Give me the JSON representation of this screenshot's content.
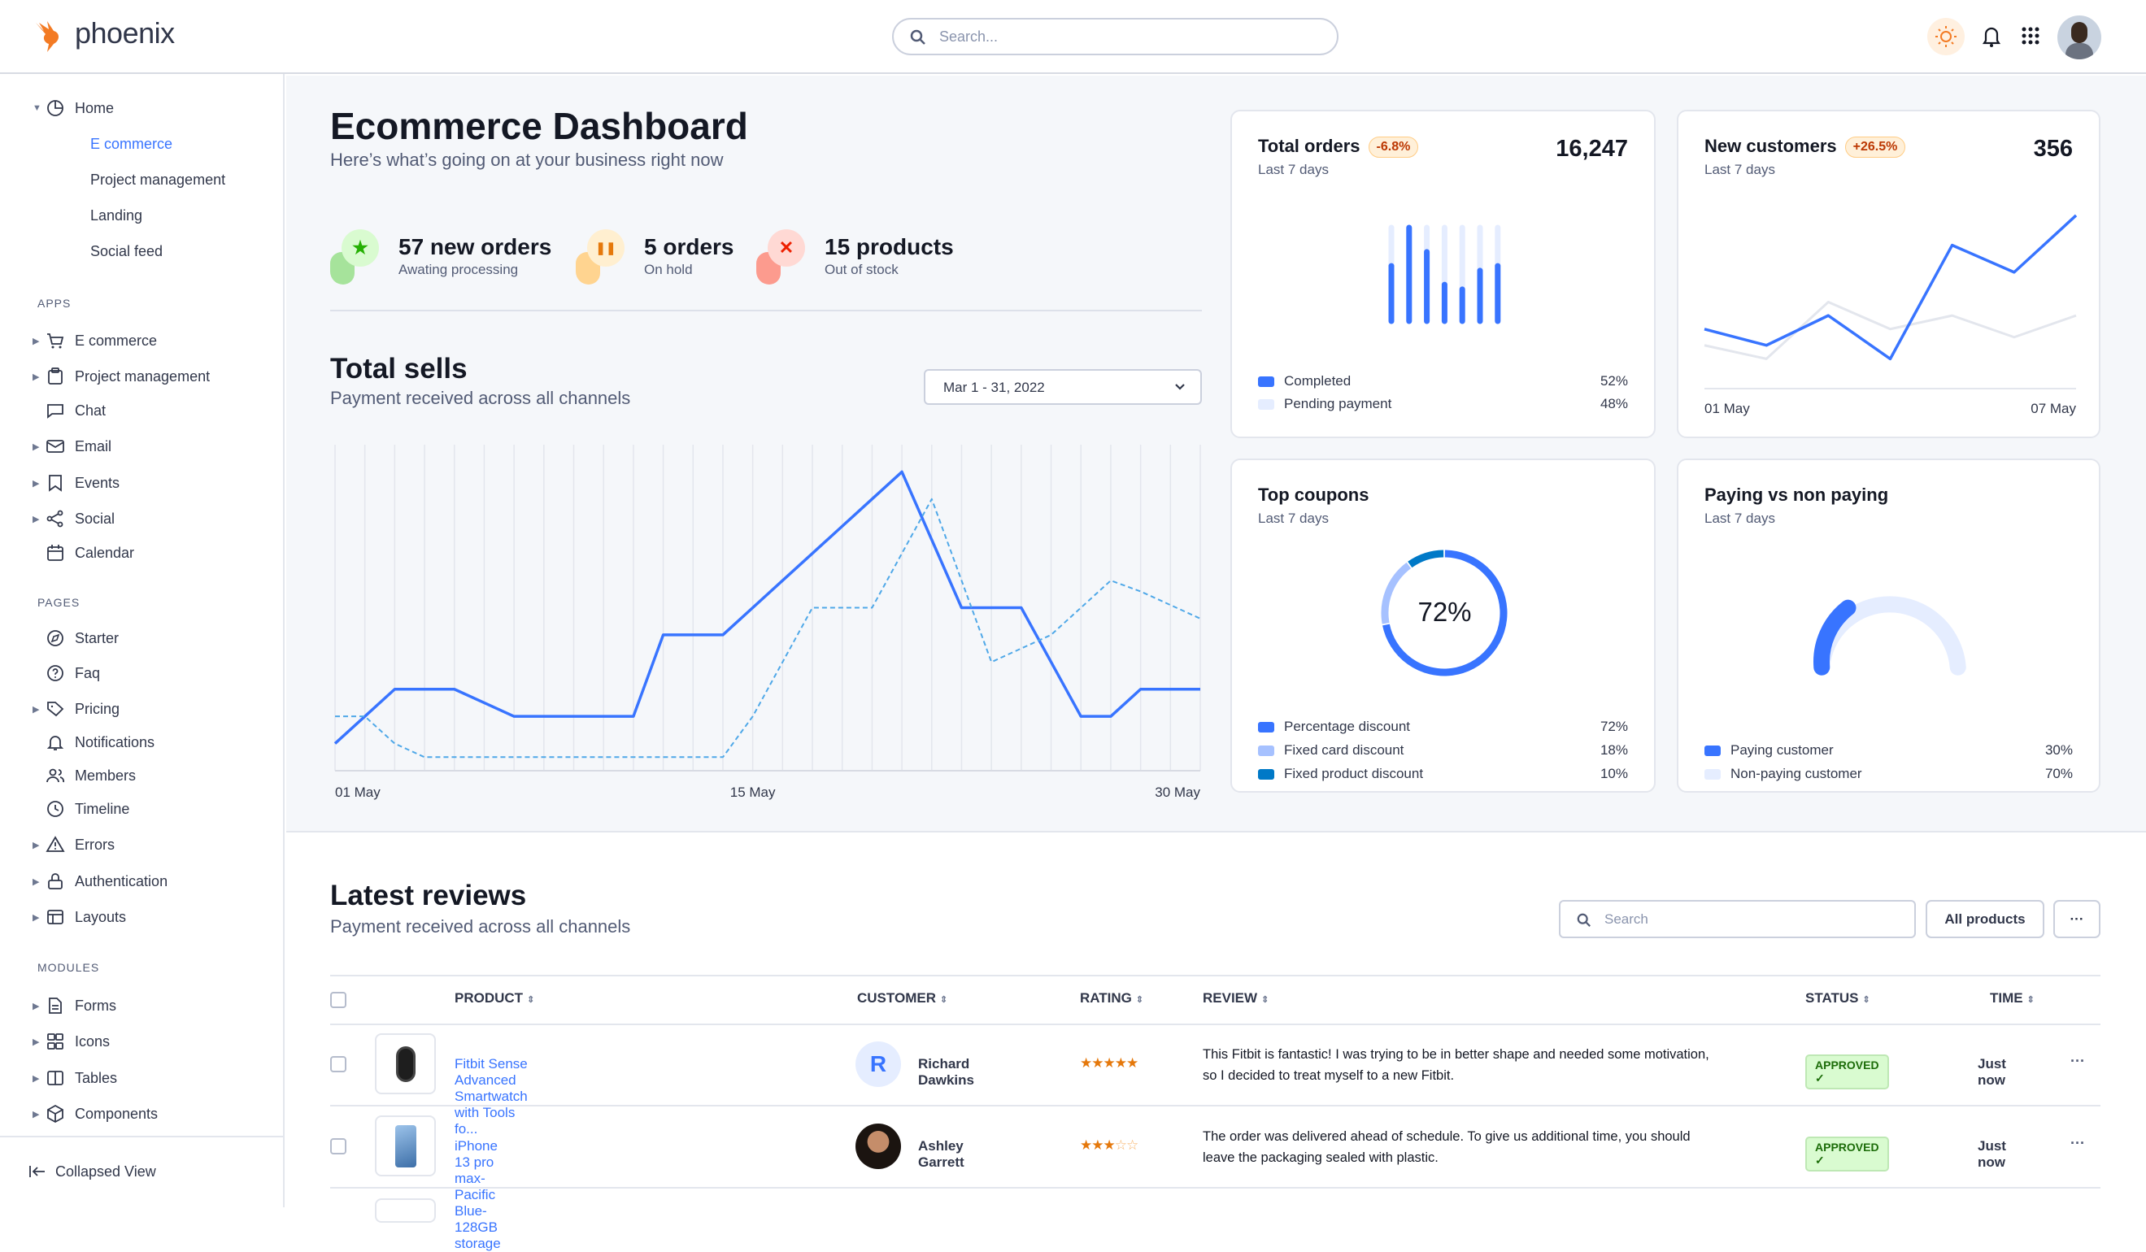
{
  "header": {
    "brand": "phoenix",
    "search_placeholder": "Search..."
  },
  "sidebar": {
    "home": {
      "label": "Home",
      "children": [
        "E commerce",
        "Project management",
        "Landing",
        "Social feed"
      ]
    },
    "sections": [
      {
        "title": "APPS",
        "items": [
          {
            "label": "E commerce",
            "icon": "cart-icon",
            "caret": true
          },
          {
            "label": "Project management",
            "icon": "clipboard-icon",
            "caret": true
          },
          {
            "label": "Chat",
            "icon": "chat-icon",
            "caret": false
          },
          {
            "label": "Email",
            "icon": "mail-icon",
            "caret": true
          },
          {
            "label": "Events",
            "icon": "bookmark-icon",
            "caret": true
          },
          {
            "label": "Social",
            "icon": "share-icon",
            "caret": true
          },
          {
            "label": "Calendar",
            "icon": "calendar-icon",
            "caret": false
          }
        ]
      },
      {
        "title": "PAGES",
        "items": [
          {
            "label": "Starter",
            "icon": "compass-icon",
            "caret": false
          },
          {
            "label": "Faq",
            "icon": "help-circle-icon",
            "caret": false
          },
          {
            "label": "Pricing",
            "icon": "tag-icon",
            "caret": true
          },
          {
            "label": "Notifications",
            "icon": "bell-icon",
            "caret": false
          },
          {
            "label": "Members",
            "icon": "users-icon",
            "caret": false
          },
          {
            "label": "Timeline",
            "icon": "clock-icon",
            "caret": false
          },
          {
            "label": "Errors",
            "icon": "alert-triangle-icon",
            "caret": true
          },
          {
            "label": "Authentication",
            "icon": "lock-icon",
            "caret": true
          },
          {
            "label": "Layouts",
            "icon": "layout-icon",
            "caret": true
          }
        ]
      },
      {
        "title": "MODULES",
        "items": [
          {
            "label": "Forms",
            "icon": "file-text-icon",
            "caret": true
          },
          {
            "label": "Icons",
            "icon": "grid-icon",
            "caret": true
          },
          {
            "label": "Tables",
            "icon": "columns-icon",
            "caret": true
          },
          {
            "label": "Components",
            "icon": "package-icon",
            "caret": true
          }
        ]
      }
    ],
    "collapse_label": "Collapsed View"
  },
  "page": {
    "title": "Ecommerce Dashboard",
    "subtitle": "Here’s what’s going on at your business right now"
  },
  "stats": [
    {
      "value": "57 new orders",
      "label": "Awating processing",
      "icon": "star-icon",
      "color": "#25b003"
    },
    {
      "value": "5 orders",
      "label": "On hold",
      "icon": "pause-icon",
      "color": "#e5780b"
    },
    {
      "value": "15 products",
      "label": "Out of stock",
      "icon": "x-icon",
      "color": "#ed2000"
    }
  ],
  "total_sells": {
    "title": "Total sells",
    "subtitle": "Payment received across all channels",
    "date_range": "Mar 1 - 31, 2022"
  },
  "colors": {
    "primary": "#3874ff",
    "secondary_line": "#4fa8e8"
  },
  "chart_data": [
    {
      "type": "line",
      "title": "Total sells",
      "x_tick_labels": [
        "01 May",
        "15 May",
        "30 May"
      ],
      "x": [
        "01",
        "02",
        "03",
        "04",
        "05",
        "06",
        "07",
        "08",
        "09",
        "10",
        "11",
        "12",
        "13",
        "14",
        "15",
        "16",
        "17",
        "18",
        "19",
        "20",
        "21",
        "22",
        "23",
        "24",
        "25",
        "26",
        "27",
        "28",
        "29",
        "30"
      ],
      "ylim": [
        0,
        12
      ],
      "grid": "vertical",
      "series": [
        {
          "style": "solid",
          "values": [
            1,
            2,
            3,
            3,
            3,
            2.5,
            2,
            2,
            2,
            2,
            2,
            5,
            5,
            5,
            6,
            7,
            8,
            9,
            10,
            11,
            8.5,
            6,
            6,
            6,
            4,
            2,
            2,
            3,
            3,
            3
          ]
        },
        {
          "style": "dashed",
          "values": [
            2,
            2,
            1,
            0.5,
            0.5,
            0.5,
            0.5,
            0.5,
            0.5,
            0.5,
            0.5,
            0.5,
            0.5,
            0.5,
            2,
            4,
            6,
            6,
            6,
            8,
            10,
            7,
            4,
            4.5,
            5,
            6,
            7,
            6.6,
            6.1,
            5.6
          ]
        }
      ]
    },
    {
      "type": "bar",
      "title": "Total orders",
      "subtitle": "Last 7 days",
      "badge": "-6.8%",
      "total": "16,247",
      "completed_fraction": [
        0.59,
        1.0,
        0.74,
        0.39,
        0.34,
        0.54,
        0.59
      ],
      "legend": [
        {
          "label": "Completed",
          "value": "52%",
          "color": "#3874ff"
        },
        {
          "label": "Pending payment",
          "value": "48%",
          "color": "#e5edff"
        }
      ]
    },
    {
      "type": "line",
      "title": "New customers",
      "subtitle": "Last 7 days",
      "badge": "+26.5%",
      "total": "356",
      "x_tick_labels": [
        "01 May",
        "07 May"
      ],
      "ylim": [
        0,
        7
      ],
      "series": [
        {
          "color": "#3874ff",
          "values": [
            2.2,
            1.6,
            2.7,
            1.1,
            5.3,
            4.3,
            6.4
          ]
        },
        {
          "color": "#e3e6ed",
          "values": [
            1.6,
            1.1,
            3.2,
            2.2,
            2.7,
            1.9,
            2.7
          ]
        }
      ]
    },
    {
      "type": "pie",
      "title": "Top coupons",
      "subtitle": "Last 7 days",
      "center_label": "72%",
      "slices": [
        {
          "label": "Percentage discount",
          "value": 72,
          "display": "72%",
          "color": "#3874ff"
        },
        {
          "label": "Fixed card discount",
          "value": 18,
          "display": "18%",
          "color": "#a6c1ff"
        },
        {
          "label": "Fixed product discount",
          "value": 10,
          "display": "10%",
          "color": "#0079c7"
        }
      ]
    },
    {
      "type": "gauge",
      "title": "Paying vs non paying",
      "subtitle": "Last 7 days",
      "slices": [
        {
          "label": "Paying customer",
          "value": 30,
          "display": "30%",
          "color": "#3874ff"
        },
        {
          "label": "Non-paying customer",
          "value": 70,
          "display": "70%",
          "color": "#e5edff"
        }
      ]
    }
  ],
  "reviews": {
    "title": "Latest reviews",
    "subtitle": "Payment received across all channels",
    "search_placeholder": "Search",
    "filter_label": "All products",
    "more_label": "···",
    "columns": [
      "PRODUCT",
      "CUSTOMER",
      "RATING",
      "REVIEW",
      "STATUS",
      "TIME"
    ],
    "rows": [
      {
        "product": "Fitbit Sense Advanced Smartwatch with Tools fo...",
        "customer": "Richard Dawkins",
        "avatar_initial": "R",
        "rating": 5,
        "review": [
          "This Fitbit is fantastic! I was trying to be in better shape and needed some motivation,",
          "so I decided to treat myself to a new Fitbit."
        ],
        "status": "APPROVED ✓",
        "time": "Just now"
      },
      {
        "product": "iPhone 13 pro max-Pacific Blue-128GB storage",
        "customer": "Ashley Garrett",
        "avatar_initial": "",
        "rating": 3,
        "review": [
          "The order was delivered ahead of schedule. To give us additional time, you should",
          "leave the packaging sealed with plastic."
        ],
        "status": "APPROVED ✓",
        "time": "Just now"
      }
    ]
  }
}
